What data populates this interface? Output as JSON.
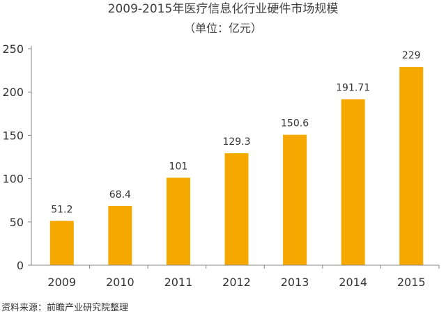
{
  "chart_data": {
    "type": "bar",
    "title": "2009-2015年医疗信息化行业硬件市场规模",
    "subtitle": "（单位：亿元）",
    "categories": [
      "2009",
      "2010",
      "2011",
      "2012",
      "2013",
      "2014",
      "2015"
    ],
    "values": [
      51.2,
      68.4,
      101,
      129.3,
      150.6,
      191.71,
      229
    ],
    "value_labels": [
      "51.2",
      "68.4",
      "101",
      "129.3",
      "150.6",
      "191.71",
      "229"
    ],
    "ylim": [
      0,
      250
    ],
    "yticks": [
      0,
      50,
      100,
      150,
      200,
      250
    ],
    "xlabel": "",
    "ylabel": "",
    "grid": false,
    "legend": "none",
    "bar_color": "#F5A800"
  },
  "source": "资料来源：前瞻产业研究院整理"
}
